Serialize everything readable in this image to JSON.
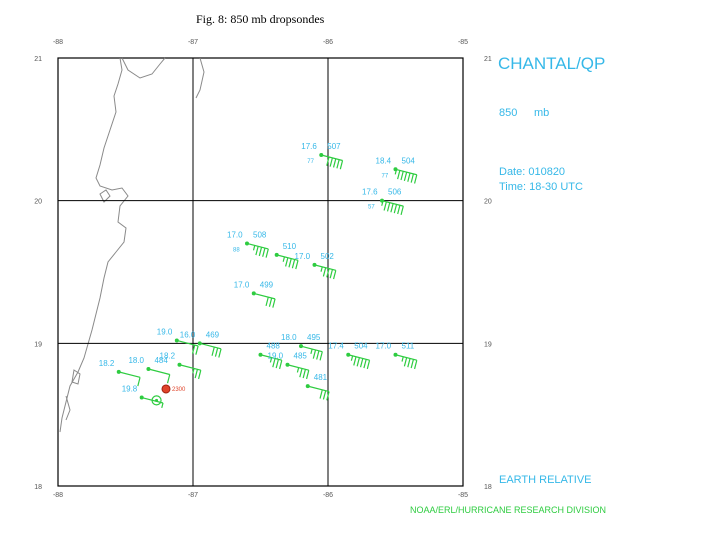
{
  "caption": "Fig. 8: 850 mb dropsondes",
  "storm": "CHANTAL/QP",
  "level": {
    "value": "850",
    "unit": "mb"
  },
  "date_line": "Date: 010820",
  "time_line": "Time: 18-30 UTC",
  "frame_label": "EARTH RELATIVE",
  "credit": "NOAA/ERL/HURRICANE RESEARCH DIVISION",
  "colors": {
    "wind": "#2ecc40",
    "labels": "#36b8e8",
    "coast": "#8a8a8a",
    "grid": "#000000",
    "center_fix": "#e0442a"
  },
  "axes": {
    "lon_ticks": [
      "-88",
      "-87",
      "-86",
      "-85"
    ],
    "lat_ticks": [
      "21",
      "20",
      "19",
      "18"
    ]
  },
  "observations": [
    {
      "lon": -86.05,
      "lat": 20.32,
      "temp": "17.6",
      "height": "507",
      "dew": "77",
      "spd": "50"
    },
    {
      "lon": -85.5,
      "lat": 20.22,
      "temp": "18.4",
      "height": "504",
      "dew": "77",
      "spd": "65"
    },
    {
      "lon": -85.6,
      "lat": 20.0,
      "temp": "17.6",
      "height": "506",
      "dew": "57",
      "spd": "65"
    },
    {
      "lon": -86.6,
      "lat": 19.7,
      "temp": "17.0",
      "height": "508",
      "dew": "88",
      "spd": "45"
    },
    {
      "lon": -86.38,
      "lat": 19.62,
      "temp": "",
      "height": "510",
      "dew": "",
      "spd": "45"
    },
    {
      "lon": -86.1,
      "lat": 19.55,
      "temp": "17.0",
      "height": "502",
      "dew": "",
      "spd": "45"
    },
    {
      "lon": -86.55,
      "lat": 19.35,
      "temp": "17.0",
      "height": "499",
      "dew": "",
      "spd": "30"
    },
    {
      "lon": -87.12,
      "lat": 19.02,
      "temp": "19.0",
      "height": "",
      "dew": "",
      "spd": "20"
    },
    {
      "lon": -86.95,
      "lat": 19.0,
      "temp": "16.0",
      "height": "469",
      "dew": "",
      "spd": "30"
    },
    {
      "lon": -86.5,
      "lat": 18.92,
      "temp": "",
      "height": "488",
      "dew": "",
      "spd": "35"
    },
    {
      "lon": -86.2,
      "lat": 18.98,
      "temp": "18.0",
      "height": "495",
      "dew": "",
      "spd": "35"
    },
    {
      "lon": -86.3,
      "lat": 18.85,
      "temp": "19.0",
      "height": "485",
      "dew": "",
      "spd": "35"
    },
    {
      "lon": -85.85,
      "lat": 18.92,
      "temp": "17.4",
      "height": "504",
      "dew": "",
      "spd": "55"
    },
    {
      "lon": -85.5,
      "lat": 18.92,
      "temp": "17.0",
      "height": "511",
      "dew": "",
      "spd": "45"
    },
    {
      "lon": -86.15,
      "lat": 18.7,
      "temp": "",
      "height": "481",
      "dew": "",
      "spd": "30"
    },
    {
      "lon": -87.55,
      "lat": 18.8,
      "temp": "18.2",
      "height": "",
      "dew": "",
      "spd": "10"
    },
    {
      "lon": -87.33,
      "lat": 18.82,
      "temp": "18.0",
      "height": "484",
      "dew": "",
      "spd": "10"
    },
    {
      "lon": -87.1,
      "lat": 18.85,
      "temp": "18.2",
      "height": "",
      "dew": "",
      "spd": "25"
    },
    {
      "lon": -87.38,
      "lat": 18.62,
      "temp": "19.8",
      "height": "",
      "dew": "",
      "spd": "5"
    }
  ],
  "center_fix": {
    "lon": -87.2,
    "lat": 18.68,
    "label": "2300"
  },
  "eye_marker": {
    "lon": -87.27,
    "lat": 18.6
  }
}
